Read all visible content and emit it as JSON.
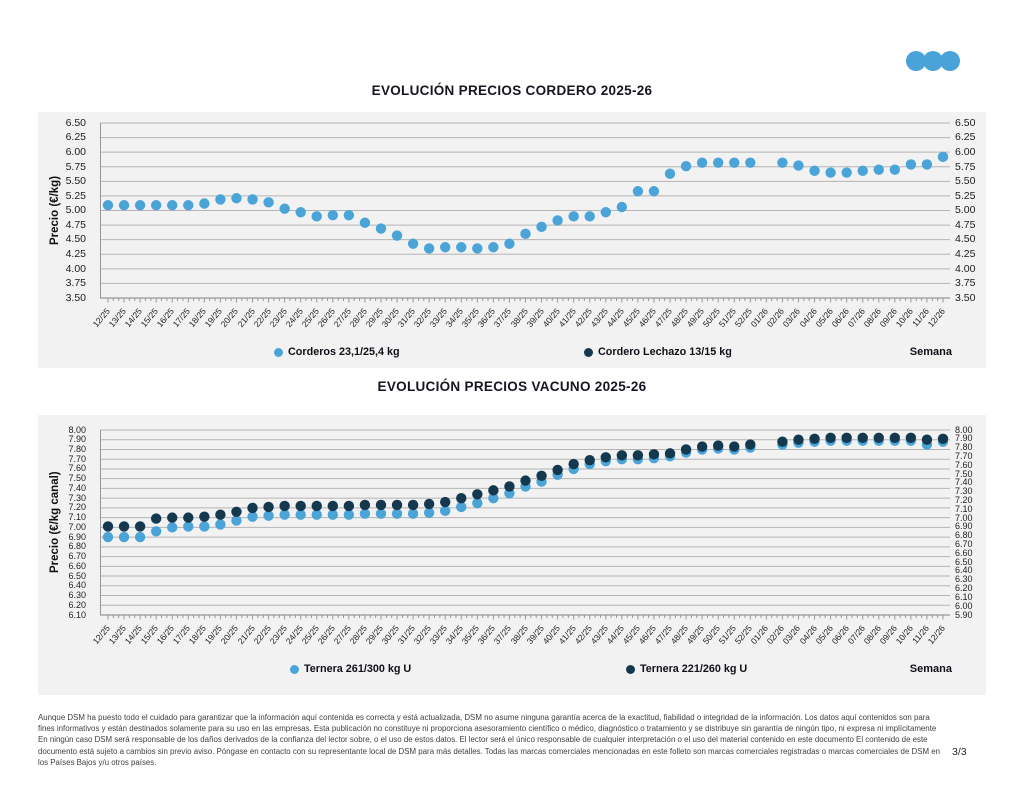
{
  "logo": {
    "color": "#4AA3D8",
    "name": "three-dots-logo"
  },
  "footer": {
    "disclaimer": "Aunque DSM ha puesto todo el cuidado para garantizar que la información aquí contenida es correcta y está actualizada, DSM no asume ninguna garantía acerca de la exactitud, fiabilidad o integridad de la información. Los datos aquí contenidos son para fines informativos y están destinados solamente para su uso en las empresas. Esta publicación no constituye ni proporciona asesoramiento científico o médico, diagnóstico o tratamiento y se distribuye sin garantía de ningún tipo, ni expresa ni implícitamente En ningún caso DSM será responsable de los daños derivados de la confianza del lector sobre, o el uso de estos datos. El lector será el único responsable de cualquier interpretación o el uso del material contenido en este documento El contenido de este documento está sujeto a cambios sin previo aviso. Póngase en contacto con su representante local de DSM para más detalles. Todas las marcas comerciales mencionadas en este folleto son marcas comerciales registradas o marcas comerciales de DSM en los Países Bajos y/u otros países.",
    "page_number": "3/3"
  },
  "chart_data": [
    {
      "type": "scatter",
      "title": "EVOLUCIÓN PRECIOS CORDERO 2025-26",
      "ylabel": "Precio (€/kg)",
      "xlabel": "Semana",
      "ylim": [
        3.5,
        6.5
      ],
      "y_tick_step": 0.25,
      "grid": true,
      "legend_position": "bottom",
      "y_ticks_left": [
        "6.50",
        "6.25",
        "6.00",
        "5.75",
        "5.50",
        "5.25",
        "5.00",
        "4.75",
        "4.50",
        "4.25",
        "4.00",
        "3.75",
        "3.50"
      ],
      "y_ticks_right": [
        "6.50",
        "6.25",
        "6.00",
        "5.75",
        "5.50",
        "5.25",
        "5.00",
        "4.75",
        "4.50",
        "4.25",
        "4.00",
        "3.75",
        "3.50"
      ],
      "categories": [
        "12/25",
        "13/25",
        "14/25",
        "15/25",
        "16/25",
        "17/25",
        "18/25",
        "19/25",
        "20/25",
        "21/25",
        "22/25",
        "23/25",
        "24/25",
        "25/25",
        "26/25",
        "27/25",
        "28/25",
        "29/25",
        "30/25",
        "31/25",
        "32/25",
        "33/25",
        "34/25",
        "35/25",
        "36/25",
        "37/25",
        "38/25",
        "39/25",
        "40/25",
        "41/25",
        "42/25",
        "43/25",
        "44/25",
        "45/25",
        "46/25",
        "47/25",
        "48/25",
        "49/25",
        "50/25",
        "51/25",
        "52/25",
        "01/26",
        "02/26",
        "03/26",
        "04/26",
        "05/26",
        "06/26",
        "07/26",
        "08/26",
        "09/26",
        "10/26",
        "11/26",
        "12/26"
      ],
      "series": [
        {
          "name": "Corderos 23,1/25,4 kg",
          "color": "#4BA4D8",
          "values": [
            5.09,
            5.09,
            5.09,
            5.09,
            5.09,
            5.09,
            5.12,
            5.19,
            5.21,
            5.19,
            5.14,
            5.03,
            4.97,
            4.9,
            4.92,
            4.92,
            4.79,
            4.69,
            4.57,
            4.43,
            4.35,
            4.37,
            4.37,
            4.35,
            4.37,
            4.43,
            4.6,
            4.72,
            4.83,
            4.9,
            4.9,
            4.97,
            5.06,
            5.33,
            5.33,
            5.63,
            5.76,
            5.82,
            5.82,
            5.82,
            5.82,
            null,
            5.82,
            5.77,
            5.68,
            5.65,
            5.65,
            5.68,
            5.7,
            5.7,
            5.79,
            5.79,
            5.92
          ]
        },
        {
          "name": "Cordero Lechazo 13/15 kg",
          "color": "#14394F",
          "values": []
        }
      ]
    },
    {
      "type": "scatter",
      "title": "EVOLUCIÓN PRECIOS VACUNO 2025-26",
      "ylabel": "Precio (€/kg canal)",
      "xlabel": "Semana",
      "ylim": [
        6.1,
        8.0
      ],
      "ylim_right": [
        5.9,
        8.0
      ],
      "y_tick_step": 0.1,
      "grid": true,
      "legend_position": "bottom",
      "y_ticks_left": [
        "8.00",
        "7.90",
        "7.80",
        "7.70",
        "7.60",
        "7.50",
        "7.40",
        "7.30",
        "7.20",
        "7.10",
        "7.00",
        "6.90",
        "6.80",
        "6.70",
        "6.60",
        "6.50",
        "6.40",
        "6.30",
        "6.20",
        "6.10"
      ],
      "y_ticks_right": [
        "8.00",
        "7.90",
        "7.80",
        "7.70",
        "7.60",
        "7.50",
        "7.40",
        "7.30",
        "7.20",
        "7.10",
        "7.00",
        "6.90",
        "6.80",
        "6.70",
        "6.60",
        "6.50",
        "6.40",
        "6.30",
        "6.20",
        "6.10",
        "6.00",
        "5.90"
      ],
      "categories": [
        "12/25",
        "13/25",
        "14/25",
        "15/25",
        "16/25",
        "17/25",
        "18/25",
        "19/25",
        "20/25",
        "21/25",
        "22/25",
        "23/25",
        "24/25",
        "25/25",
        "26/25",
        "27/25",
        "28/25",
        "29/25",
        "30/25",
        "31/25",
        "32/25",
        "33/25",
        "34/25",
        "35/25",
        "36/25",
        "37/25",
        "38/25",
        "39/25",
        "40/25",
        "41/25",
        "42/25",
        "43/25",
        "44/25",
        "45/25",
        "46/25",
        "47/25",
        "48/25",
        "49/25",
        "50/25",
        "51/25",
        "52/25",
        "01/26",
        "02/26",
        "03/26",
        "04/26",
        "05/26",
        "06/26",
        "07/26",
        "08/26",
        "09/26",
        "10/26",
        "11/26",
        "12/26"
      ],
      "series": [
        {
          "name": "Ternera 261/300 kg U",
          "color": "#4BA4D8",
          "values": [
            6.9,
            6.9,
            6.9,
            6.96,
            7.0,
            7.01,
            7.01,
            7.03,
            7.07,
            7.11,
            7.12,
            7.13,
            7.13,
            7.13,
            7.13,
            7.13,
            7.14,
            7.14,
            7.14,
            7.14,
            7.15,
            7.17,
            7.21,
            7.25,
            7.3,
            7.35,
            7.42,
            7.47,
            7.54,
            7.6,
            7.65,
            7.68,
            7.7,
            7.7,
            7.71,
            7.73,
            7.77,
            7.8,
            7.81,
            7.8,
            7.82,
            null,
            7.85,
            7.87,
            7.88,
            7.89,
            7.89,
            7.89,
            7.89,
            7.89,
            7.89,
            7.85,
            7.88
          ]
        },
        {
          "name": "Ternera 221/260 kg U",
          "color": "#14394F",
          "values": [
            7.01,
            7.01,
            7.01,
            7.09,
            7.1,
            7.1,
            7.11,
            7.13,
            7.16,
            7.2,
            7.21,
            7.22,
            7.22,
            7.22,
            7.22,
            7.22,
            7.23,
            7.23,
            7.23,
            7.23,
            7.24,
            7.26,
            7.3,
            7.34,
            7.38,
            7.42,
            7.48,
            7.53,
            7.59,
            7.65,
            7.69,
            7.72,
            7.74,
            7.74,
            7.75,
            7.76,
            7.8,
            7.83,
            7.84,
            7.83,
            7.85,
            null,
            7.88,
            7.9,
            7.91,
            7.92,
            7.92,
            7.92,
            7.92,
            7.92,
            7.92,
            7.9,
            7.91
          ]
        }
      ]
    }
  ]
}
